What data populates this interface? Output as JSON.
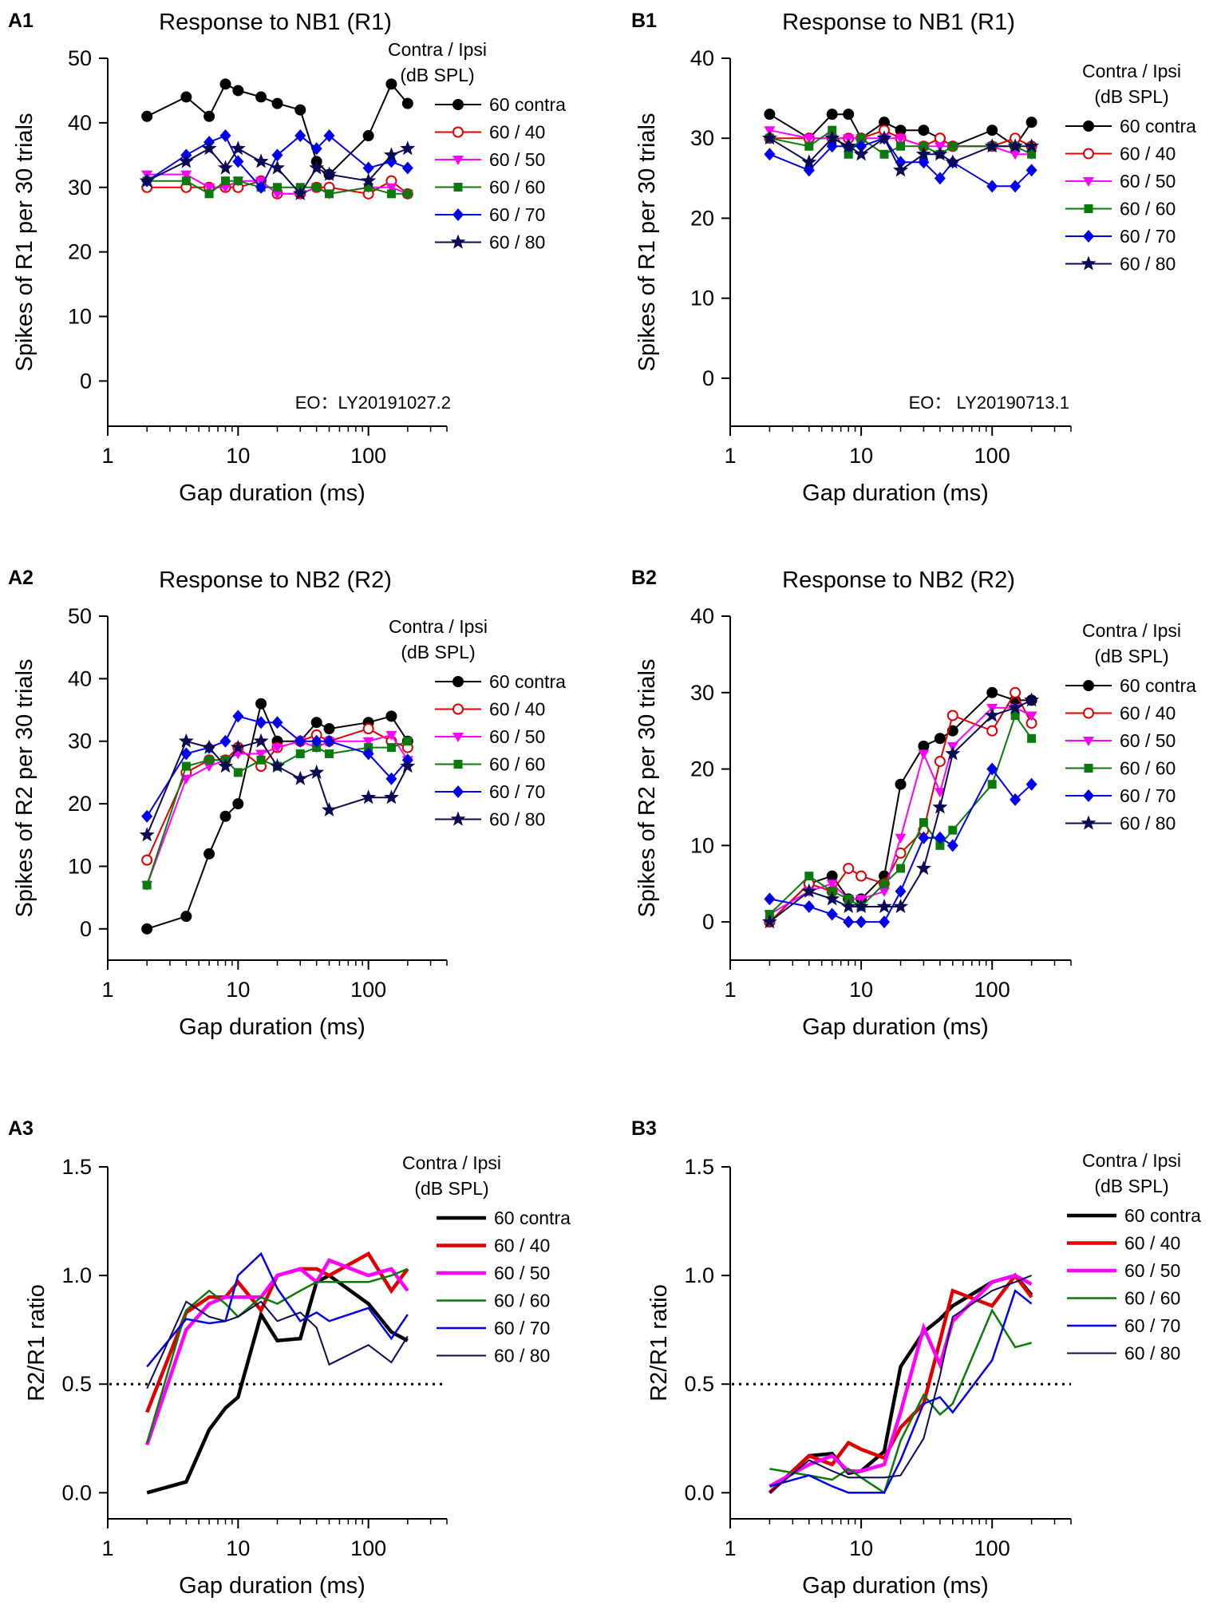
{
  "colors": {
    "60 contra": "#000000",
    "60 / 40": "#e00000",
    "60 / 50": "#ff00ff",
    "60 / 60": "#0a7a0a",
    "60 / 70": "#0000ee",
    "60 / 80": "#0a0a55"
  },
  "markers": {
    "60 contra": "filled-circle",
    "60 / 40": "open-circle",
    "60 / 50": "down-triangle",
    "60 / 60": "square",
    "60 / 70": "diamond",
    "60 / 80": "star"
  },
  "chart_data": [
    {
      "id": "A1",
      "panel_label": "A1",
      "type": "line",
      "title": "Response to NB1 (R1)",
      "xlabel": "Gap  duration (ms)",
      "ylabel": "Spikes of R1 per 30 trials",
      "xscale": "log",
      "xlim": [
        1,
        400
      ],
      "ylim": [
        -7,
        50
      ],
      "xticks": [
        1,
        10,
        100
      ],
      "xtick_labels": [
        "1",
        "10",
        "100"
      ],
      "yticks": [
        0,
        10,
        20,
        30,
        40,
        50
      ],
      "ytick_labels": [
        "0",
        "10",
        "20",
        "30",
        "40",
        "50"
      ],
      "grid": false,
      "legend_position": "top-right",
      "legend_title": [
        "Contra / Ipsi",
        "(dB SPL)"
      ],
      "annotation": "EO：LY20191027.2",
      "x": [
        2,
        4,
        6,
        8,
        10,
        15,
        20,
        30,
        40,
        50,
        100,
        150,
        200
      ],
      "series": [
        {
          "name": "60 contra",
          "values": [
            41,
            44,
            41,
            46,
            45,
            44,
            43,
            42,
            34,
            32,
            38,
            46,
            43
          ]
        },
        {
          "name": "60 / 40",
          "values": [
            30,
            30,
            30,
            30,
            30,
            31,
            29,
            29,
            30,
            30,
            29,
            31,
            29
          ]
        },
        {
          "name": "60 / 50",
          "values": [
            32,
            32,
            30,
            30,
            31,
            31,
            29,
            29,
            30,
            29,
            30,
            30,
            29
          ]
        },
        {
          "name": "60 / 60",
          "values": [
            31,
            31,
            29,
            31,
            31,
            30,
            30,
            30,
            30,
            29,
            30,
            29,
            29
          ]
        },
        {
          "name": "60 / 70",
          "values": [
            31,
            35,
            37,
            38,
            34,
            30,
            35,
            38,
            36,
            38,
            33,
            34,
            33
          ]
        },
        {
          "name": "60 / 80",
          "values": [
            31,
            34,
            36,
            33,
            36,
            34,
            33,
            29,
            33,
            32,
            31,
            35,
            36
          ]
        }
      ]
    },
    {
      "id": "B1",
      "panel_label": "B1",
      "type": "line",
      "title": "Response to NB1 (R1)",
      "xlabel": "Gap  duration (ms)",
      "ylabel": "Spikes of R1 per 30 trials",
      "xscale": "log",
      "xlim": [
        1,
        400
      ],
      "ylim": [
        -6,
        40
      ],
      "xticks": [
        1,
        10,
        100
      ],
      "xtick_labels": [
        "1",
        "10",
        "100"
      ],
      "yticks": [
        0,
        10,
        20,
        30,
        40
      ],
      "ytick_labels": [
        "0",
        "10",
        "20",
        "30",
        "40"
      ],
      "grid": false,
      "legend_position": "top-right",
      "legend_title": [
        "Contra / Ipsi",
        "(dB SPL)"
      ],
      "annotation": "EO：  LY20190713.1",
      "x": [
        2,
        4,
        6,
        8,
        10,
        15,
        20,
        30,
        40,
        50,
        100,
        150,
        200
      ],
      "series": [
        {
          "name": "60 contra",
          "values": [
            33,
            30,
            33,
            33,
            30,
            32,
            31,
            31,
            30,
            29,
            31,
            29,
            32
          ]
        },
        {
          "name": "60 / 40",
          "values": [
            30,
            30,
            30,
            30,
            30,
            31,
            30,
            29,
            30,
            29,
            29,
            30,
            29
          ]
        },
        {
          "name": "60 / 50",
          "values": [
            31,
            30,
            30,
            30,
            30,
            30,
            30,
            29,
            29,
            29,
            29,
            28,
            28
          ]
        },
        {
          "name": "60 / 60",
          "values": [
            30,
            29,
            31,
            28,
            30,
            28,
            29,
            29,
            28,
            29,
            29,
            29,
            28
          ]
        },
        {
          "name": "60 / 70",
          "values": [
            28,
            26,
            29,
            29,
            29,
            30,
            27,
            27,
            25,
            27,
            24,
            24,
            26
          ]
        },
        {
          "name": "60 / 80",
          "values": [
            30,
            27,
            30,
            29,
            28,
            30,
            26,
            28,
            28,
            27,
            29,
            29,
            29
          ]
        }
      ]
    },
    {
      "id": "A2",
      "panel_label": "A2",
      "type": "line",
      "title": "Response to NB2 (R2)",
      "xlabel": "Gap  duration (ms)",
      "ylabel": "Spikes of R2 per 30 trials",
      "xscale": "log",
      "xlim": [
        1,
        400
      ],
      "ylim": [
        -5,
        50
      ],
      "xticks": [
        1,
        10,
        100
      ],
      "xtick_labels": [
        "1",
        "10",
        "100"
      ],
      "yticks": [
        0,
        10,
        20,
        30,
        40,
        50
      ],
      "ytick_labels": [
        "0",
        "10",
        "20",
        "30",
        "40",
        "50"
      ],
      "grid": false,
      "legend_position": "top-right",
      "legend_title": [
        "Contra / Ipsi",
        "(dB SPL)"
      ],
      "x": [
        2,
        4,
        6,
        8,
        10,
        15,
        20,
        30,
        40,
        50,
        100,
        150,
        200
      ],
      "series": [
        {
          "name": "60 contra",
          "values": [
            0,
            2,
            12,
            18,
            20,
            36,
            30,
            30,
            33,
            32,
            33,
            34,
            30
          ]
        },
        {
          "name": "60 / 40",
          "values": [
            11,
            25,
            27,
            27,
            29,
            26,
            29,
            30,
            31,
            30,
            32,
            30,
            29
          ]
        },
        {
          "name": "60 / 50",
          "values": [
            7,
            24,
            26,
            27,
            28,
            28,
            29,
            30,
            29,
            30,
            30,
            31,
            27
          ]
        },
        {
          "name": "60 / 60",
          "values": [
            7,
            26,
            27,
            27,
            25,
            27,
            26,
            28,
            29,
            28,
            29,
            29,
            30
          ]
        },
        {
          "name": "60 / 70",
          "values": [
            18,
            28,
            29,
            30,
            34,
            33,
            33,
            30,
            30,
            30,
            28,
            24,
            27
          ]
        },
        {
          "name": "60 / 80",
          "values": [
            15,
            30,
            29,
            26,
            29,
            30,
            26,
            24,
            25,
            19,
            21,
            21,
            26
          ]
        }
      ]
    },
    {
      "id": "B2",
      "panel_label": "B2",
      "type": "line",
      "title": "Response to NB2 (R2)",
      "xlabel": "Gap  duration (ms)",
      "ylabel": "Spikes of R2 per 30 trials",
      "xscale": "log",
      "xlim": [
        1,
        400
      ],
      "ylim": [
        -5,
        40
      ],
      "xticks": [
        1,
        10,
        100
      ],
      "xtick_labels": [
        "1",
        "10",
        "100"
      ],
      "yticks": [
        0,
        10,
        20,
        30,
        40
      ],
      "ytick_labels": [
        "0",
        "10",
        "20",
        "30",
        "40"
      ],
      "grid": false,
      "legend_position": "top-right",
      "legend_title": [
        "Contra / Ipsi",
        "(dB SPL)"
      ],
      "x": [
        2,
        4,
        6,
        8,
        10,
        15,
        20,
        30,
        40,
        50,
        100,
        150,
        200
      ],
      "series": [
        {
          "name": "60 contra",
          "values": [
            0,
            5,
            6,
            3,
            3,
            6,
            18,
            23,
            24,
            25,
            30,
            29,
            29
          ]
        },
        {
          "name": "60 / 40",
          "values": [
            0,
            5,
            4,
            7,
            6,
            5,
            9,
            12,
            21,
            27,
            25,
            30,
            26
          ]
        },
        {
          "name": "60 / 50",
          "values": [
            1,
            4,
            5,
            3,
            3,
            4,
            11,
            22,
            17,
            23,
            28,
            28,
            27
          ]
        },
        {
          "name": "60 / 60",
          "values": [
            1,
            6,
            4,
            3,
            2,
            5,
            7,
            13,
            10,
            12,
            18,
            27,
            24
          ]
        },
        {
          "name": "60 / 70",
          "values": [
            3,
            2,
            1,
            0,
            0,
            0,
            4,
            11,
            11,
            10,
            20,
            16,
            18
          ]
        },
        {
          "name": "60 / 80",
          "values": [
            0,
            4,
            3,
            2,
            2,
            2,
            2,
            7,
            15,
            22,
            27,
            28,
            29
          ]
        }
      ]
    },
    {
      "id": "A3",
      "panel_label": "A3",
      "type": "line",
      "title": "",
      "xlabel": "Gap  duration (ms)",
      "ylabel": "R2/R1 ratio",
      "xscale": "log",
      "xlim": [
        1,
        400
      ],
      "ylim": [
        -0.12,
        1.5
      ],
      "xticks": [
        1,
        10,
        100
      ],
      "xtick_labels": [
        "1",
        "10",
        "100"
      ],
      "yticks": [
        0,
        0.5,
        1.0,
        1.5
      ],
      "ytick_labels": [
        "0.0",
        "0.5",
        "1.0",
        "1.5"
      ],
      "grid": false,
      "legend_position": "top-right",
      "legend_title": [
        "Contra / Ipsi",
        "(dB SPL)"
      ],
      "reference_line": 0.5,
      "x": [
        2,
        4,
        6,
        8,
        10,
        15,
        20,
        30,
        40,
        50,
        100,
        150,
        200
      ],
      "series": [
        {
          "name": "60 contra",
          "values": [
            0,
            0.05,
            0.29,
            0.39,
            0.44,
            0.82,
            0.7,
            0.71,
            0.97,
            1.0,
            0.87,
            0.74,
            0.7
          ]
        },
        {
          "name": "60 / 40",
          "values": [
            0.37,
            0.83,
            0.9,
            0.9,
            0.97,
            0.84,
            1.0,
            1.03,
            1.03,
            1.0,
            1.1,
            0.93,
            1.03
          ]
        },
        {
          "name": "60 / 50",
          "values": [
            0.22,
            0.75,
            0.87,
            0.9,
            0.9,
            0.9,
            1.0,
            1.03,
            0.97,
            1.07,
            1.0,
            1.03,
            0.93
          ]
        },
        {
          "name": "60 / 60",
          "values": [
            0.23,
            0.84,
            0.93,
            0.87,
            0.81,
            0.9,
            0.87,
            0.93,
            0.97,
            0.97,
            0.97,
            1.0,
            1.03
          ]
        },
        {
          "name": "60 / 70",
          "values": [
            0.58,
            0.8,
            0.78,
            0.79,
            1.0,
            1.1,
            0.94,
            0.79,
            0.83,
            0.79,
            0.85,
            0.71,
            0.82
          ]
        },
        {
          "name": "60 / 80",
          "values": [
            0.48,
            0.88,
            0.81,
            0.79,
            0.81,
            0.88,
            0.79,
            0.83,
            0.76,
            0.59,
            0.68,
            0.6,
            0.72
          ]
        }
      ]
    },
    {
      "id": "B3",
      "panel_label": "B3",
      "type": "line",
      "title": "",
      "xlabel": "Gap  duration (ms)",
      "ylabel": "R2/R1 ratio",
      "xscale": "log",
      "xlim": [
        1,
        400
      ],
      "ylim": [
        -0.12,
        1.5
      ],
      "xticks": [
        1,
        10,
        100
      ],
      "xtick_labels": [
        "1",
        "10",
        "100"
      ],
      "yticks": [
        0,
        0.5,
        1.0,
        1.5
      ],
      "ytick_labels": [
        "0.0",
        "0.5",
        "1.0",
        "1.5"
      ],
      "grid": false,
      "legend_position": "top-right",
      "legend_title": [
        "Contra / Ipsi",
        "(dB SPL)"
      ],
      "reference_line": 0.5,
      "x": [
        2,
        4,
        6,
        8,
        10,
        15,
        20,
        30,
        40,
        50,
        100,
        150,
        200
      ],
      "series": [
        {
          "name": "60 contra",
          "values": [
            0,
            0.17,
            0.18,
            0.09,
            0.1,
            0.19,
            0.58,
            0.74,
            0.8,
            0.86,
            0.97,
            1.0,
            0.91
          ]
        },
        {
          "name": "60 / 40",
          "values": [
            0,
            0.17,
            0.13,
            0.23,
            0.2,
            0.16,
            0.3,
            0.41,
            0.7,
            0.93,
            0.86,
            1.0,
            0.9
          ]
        },
        {
          "name": "60 / 50",
          "values": [
            0.03,
            0.13,
            0.17,
            0.1,
            0.1,
            0.13,
            0.37,
            0.76,
            0.59,
            0.79,
            0.97,
            1.0,
            0.96
          ]
        },
        {
          "name": "60 / 60",
          "values": [
            0.11,
            0.08,
            0.06,
            0.11,
            0.07,
            0,
            0.24,
            0.45,
            0.36,
            0.41,
            0.84,
            0.67,
            0.69
          ]
        },
        {
          "name": "60 / 70",
          "values": [
            0.03,
            0.08,
            0.03,
            0,
            0,
            0,
            0.15,
            0.41,
            0.44,
            0.37,
            0.61,
            0.93,
            0.87
          ]
        },
        {
          "name": "60 / 80",
          "values": [
            0,
            0.15,
            0.1,
            0.07,
            0.07,
            0.07,
            0.08,
            0.25,
            0.54,
            0.81,
            0.93,
            0.97,
            1.0
          ]
        }
      ]
    }
  ]
}
